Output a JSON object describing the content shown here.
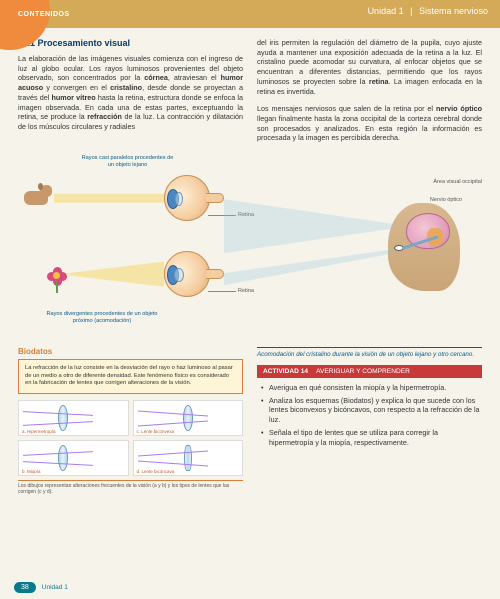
{
  "header": {
    "contents_label": "CONTENIDOS",
    "unit": "Unidad 1",
    "topic": "Sistema nervioso"
  },
  "section": {
    "title": "11.1 Procesamiento visual",
    "para_left": "La elaboración de las imágenes visuales comienza con el ingreso de luz al globo ocular. Los rayos luminosos provenientes del objeto observado, son concentrados por la <b>córnea</b>, atraviesan el <b>humor acuoso</b> y convergen en el <b>cristalino</b>, desde donde se proyectan a través del <b>humor vítreo</b> hasta la retina, estructura donde se enfoca la imagen observada. En cada una de estas partes, exceptuando la retina, se produce la <b>refracción</b> de la luz. La contracción y dilatación de los músculos circulares y radiales",
    "para_right": "del iris permiten la regulación del diámetro de la pupila, cuyo ajuste ayuda a mantener una exposición adecuada de la retina a la luz. El cristalino puede acomodar su curvatura, al enfocar objetos que se encuentran a diferentes distancias, permitiendo que los rayos luminosos se proyecten sobre la <b>retina</b>. La imagen enfocada en la retina es invertida.",
    "para_right2": "Los mensajes nerviosos que salen de la retina por el <b>nervio óptico</b> llegan finalmente hasta la zona occipital de la corteza cerebral donde son procesados y analizados. En esta región la información es procesada y la imagen es percibida derecha."
  },
  "diagram": {
    "caption_top": "Rayos casi paralelos procedentes de un objeto lejano",
    "caption_bottom": "Rayos divergentes procedentes de un objeto próximo (acomodación)",
    "retina": "Retina",
    "occipital": "Área visual occipital",
    "optic_nerve": "Nervio óptico",
    "accommodation_caption": "Acomodación del cristalino durante la visión de un objeto lejano y otro cercano."
  },
  "biodatos": {
    "title": "Biodatos",
    "text": "La refracción de la luz consiste en la desviación del rayo o haz luminoso al pasar de un medio a otro de diferente densidad. Este fenómeno físico es considerado en la fabricación de lentes que corrigen alteraciones de la visión.",
    "lenses": {
      "a": "a. Hipermetropía",
      "b": "b. Miopía",
      "c": "c. Lente biconvexa",
      "d": "d. Lente bicóncava"
    },
    "footnote": "Los dibujos representan alteraciones frecuentes de la visión (a y b) y los tipos de lentes que las corrigen (c y d)."
  },
  "activity": {
    "label": "ACTIVIDAD 14",
    "subtitle": "AVERIGUAR Y COMPRENDER",
    "items": [
      "Averigua en qué consisten la miopía y la hipermetropía.",
      "Analiza los esquemas (Biodatos) y explica lo que sucede con los lentes biconvexos y bicóncavos, con respecto a la refracción de la luz.",
      "Señala el tipo de lentes que se utiliza para corregir la hipermetropía y la miopía, respectivamente."
    ]
  },
  "footer": {
    "page": "38",
    "unit": "Unidad 1"
  }
}
